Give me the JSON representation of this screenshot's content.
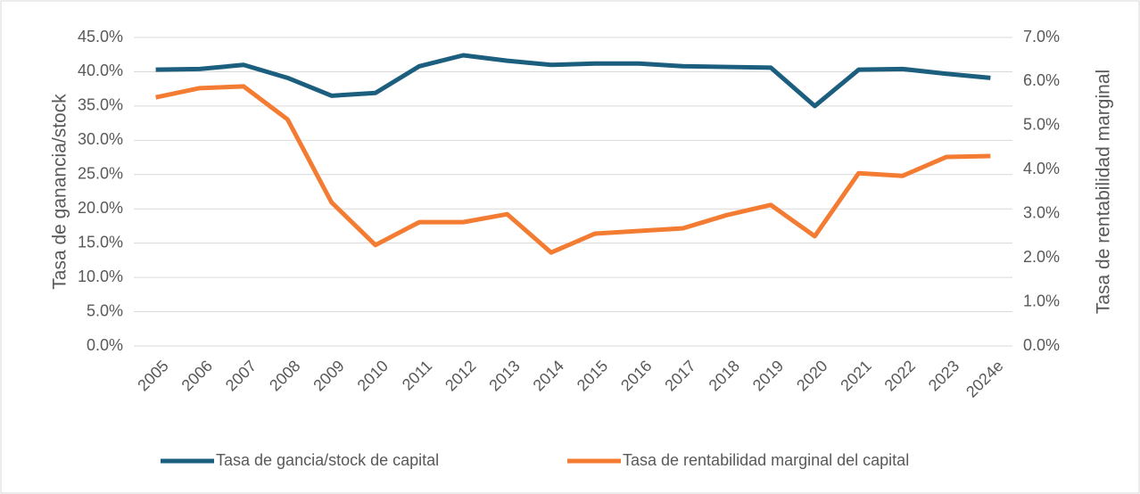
{
  "chart_data": {
    "type": "line",
    "categories": [
      "2005",
      "2006",
      "2007",
      "2008",
      "2009",
      "2010",
      "2011",
      "2012",
      "2013",
      "2014",
      "2015",
      "2016",
      "2017",
      "2018",
      "2019",
      "2020",
      "2021",
      "2022",
      "2023",
      "2024e"
    ],
    "y_label": "Tasa de ganancia/stock",
    "y2_label": "Tasa de rentabilidad marginal",
    "series": [
      {
        "name": "Tasa de gancia/stock de capital",
        "color": "#1b5e7e",
        "values": [
          40.3,
          40.4,
          41.0,
          39.1,
          36.5,
          36.9,
          40.8,
          42.4,
          41.6,
          41.0,
          41.2,
          41.2,
          40.8,
          40.7,
          40.6,
          35.0,
          40.3,
          40.4,
          39.7,
          39.1
        ]
      },
      {
        "name": "Tasa de rentabilidad marginal del capital",
        "color": "#f47b32",
        "axis": "y2",
        "values": [
          5.64,
          5.85,
          5.89,
          5.14,
          3.26,
          2.29,
          2.81,
          2.81,
          2.99,
          2.12,
          2.55,
          2.61,
          2.67,
          2.97,
          3.2,
          2.49,
          3.92,
          3.86,
          4.29,
          4.31
        ]
      }
    ],
    "ylim": [
      0,
      45
    ],
    "yticks": [
      {
        "value": 0,
        "label": "0.0%"
      },
      {
        "value": 5,
        "label": "5.0%"
      },
      {
        "value": 10,
        "label": "10.0%"
      },
      {
        "value": 15,
        "label": "15.0%"
      },
      {
        "value": 20,
        "label": "20.0%"
      },
      {
        "value": 25,
        "label": "25.0%"
      },
      {
        "value": 30,
        "label": "30.0%"
      },
      {
        "value": 35,
        "label": "35.0%"
      },
      {
        "value": 40,
        "label": "40.0%"
      },
      {
        "value": 45,
        "label": "45.0%"
      }
    ],
    "y2lim": [
      0,
      7
    ],
    "y2ticks": [
      {
        "value": 0,
        "label": "0.0%"
      },
      {
        "value": 1,
        "label": "1.0%"
      },
      {
        "value": 2,
        "label": "2.0%"
      },
      {
        "value": 3,
        "label": "3.0%"
      },
      {
        "value": 4,
        "label": "4.0%"
      },
      {
        "value": 5,
        "label": "5.0%"
      },
      {
        "value": 6,
        "label": "6.0%"
      },
      {
        "value": 7,
        "label": "7.0%"
      }
    ],
    "grid": true,
    "legend": "bottom"
  }
}
